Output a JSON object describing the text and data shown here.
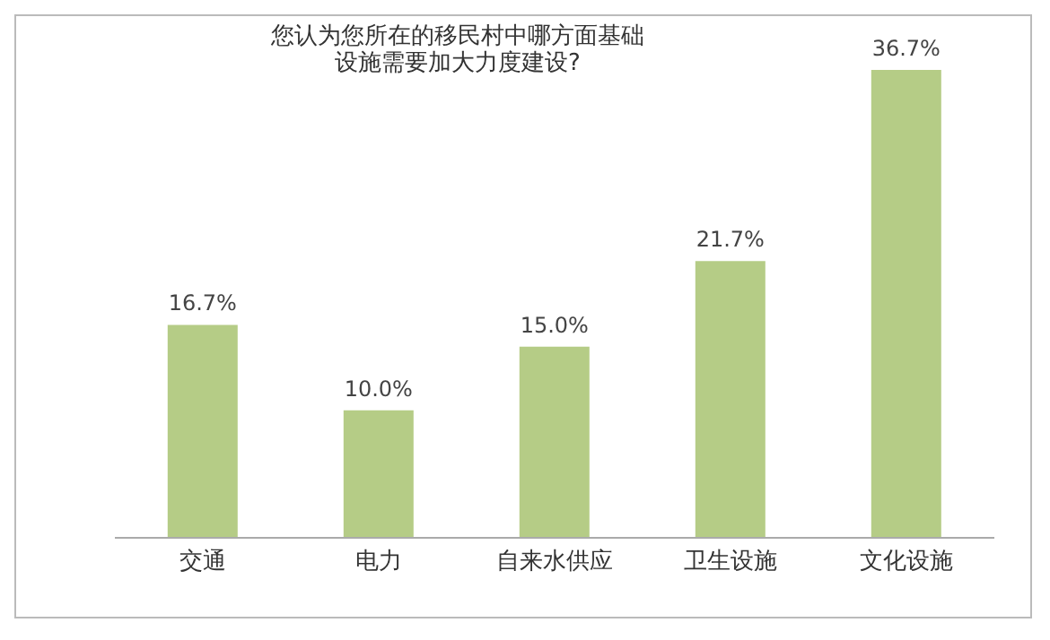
{
  "chart_data": {
    "type": "bar",
    "title": "您认为您所在的移民村中哪方面基础设施需要加大力度建设?",
    "categories": [
      "交通",
      "电力",
      "自来水供应",
      "卫生设施",
      "文化设施"
    ],
    "values": [
      16.7,
      10.0,
      15.0,
      21.7,
      36.7
    ],
    "value_labels": [
      "16.7%",
      "10.0%",
      "15.0%",
      "21.7%",
      "36.7%"
    ],
    "color": "#b5cc86",
    "grid": false,
    "legend": false
  }
}
